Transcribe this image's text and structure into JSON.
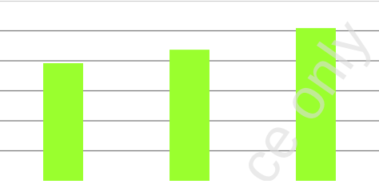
{
  "chart_data": {
    "type": "bar",
    "categories": [
      null,
      null,
      null
    ],
    "values": [
      3.92,
      4.37,
      5.09
    ],
    "color": "#9aff2e",
    "ylim": [
      0,
      6
    ],
    "yticks": [
      1,
      2,
      3,
      4,
      5
    ],
    "grid": true,
    "watermark": "ce only"
  }
}
